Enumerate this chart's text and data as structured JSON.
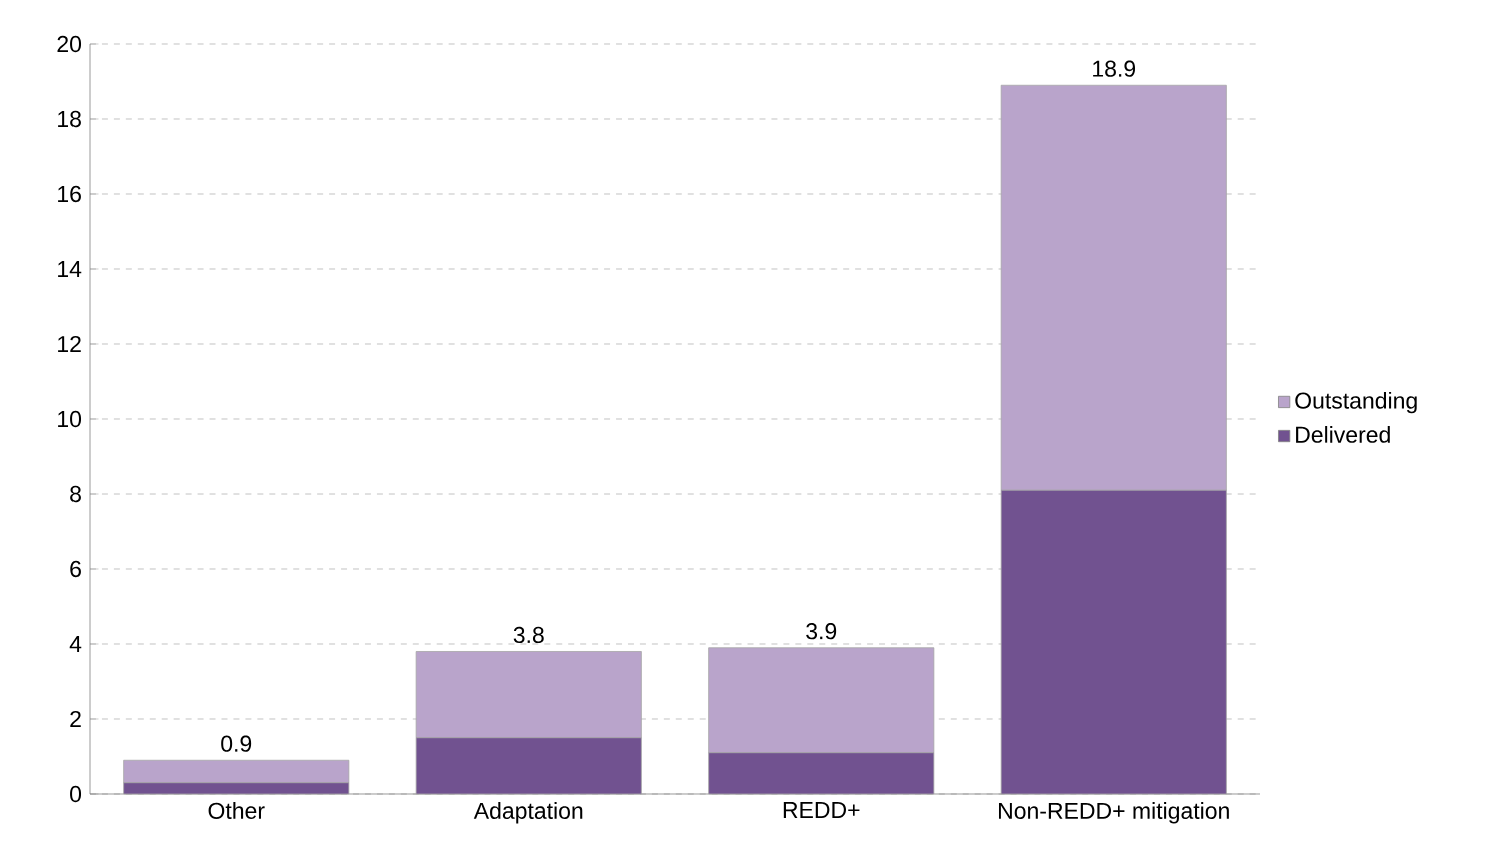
{
  "chart_data": {
    "type": "bar",
    "stacked": true,
    "categories": [
      "Other",
      "Adaptation",
      "REDD+",
      "Non-REDD+ mitigation"
    ],
    "series": [
      {
        "name": "Delivered",
        "color": "#715290",
        "values": [
          0.3,
          1.5,
          1.1,
          8.1
        ]
      },
      {
        "name": "Outstanding",
        "color": "#b9a4cb",
        "values": [
          0.6,
          2.3,
          2.8,
          10.8
        ]
      }
    ],
    "totals": [
      "0.9",
      "3.8",
      "3.9",
      "18.9"
    ],
    "ylim": [
      0,
      20
    ],
    "yticks": [
      0,
      2,
      4,
      6,
      8,
      10,
      12,
      14,
      16,
      18,
      20
    ],
    "grid": "y",
    "legend": "right"
  }
}
